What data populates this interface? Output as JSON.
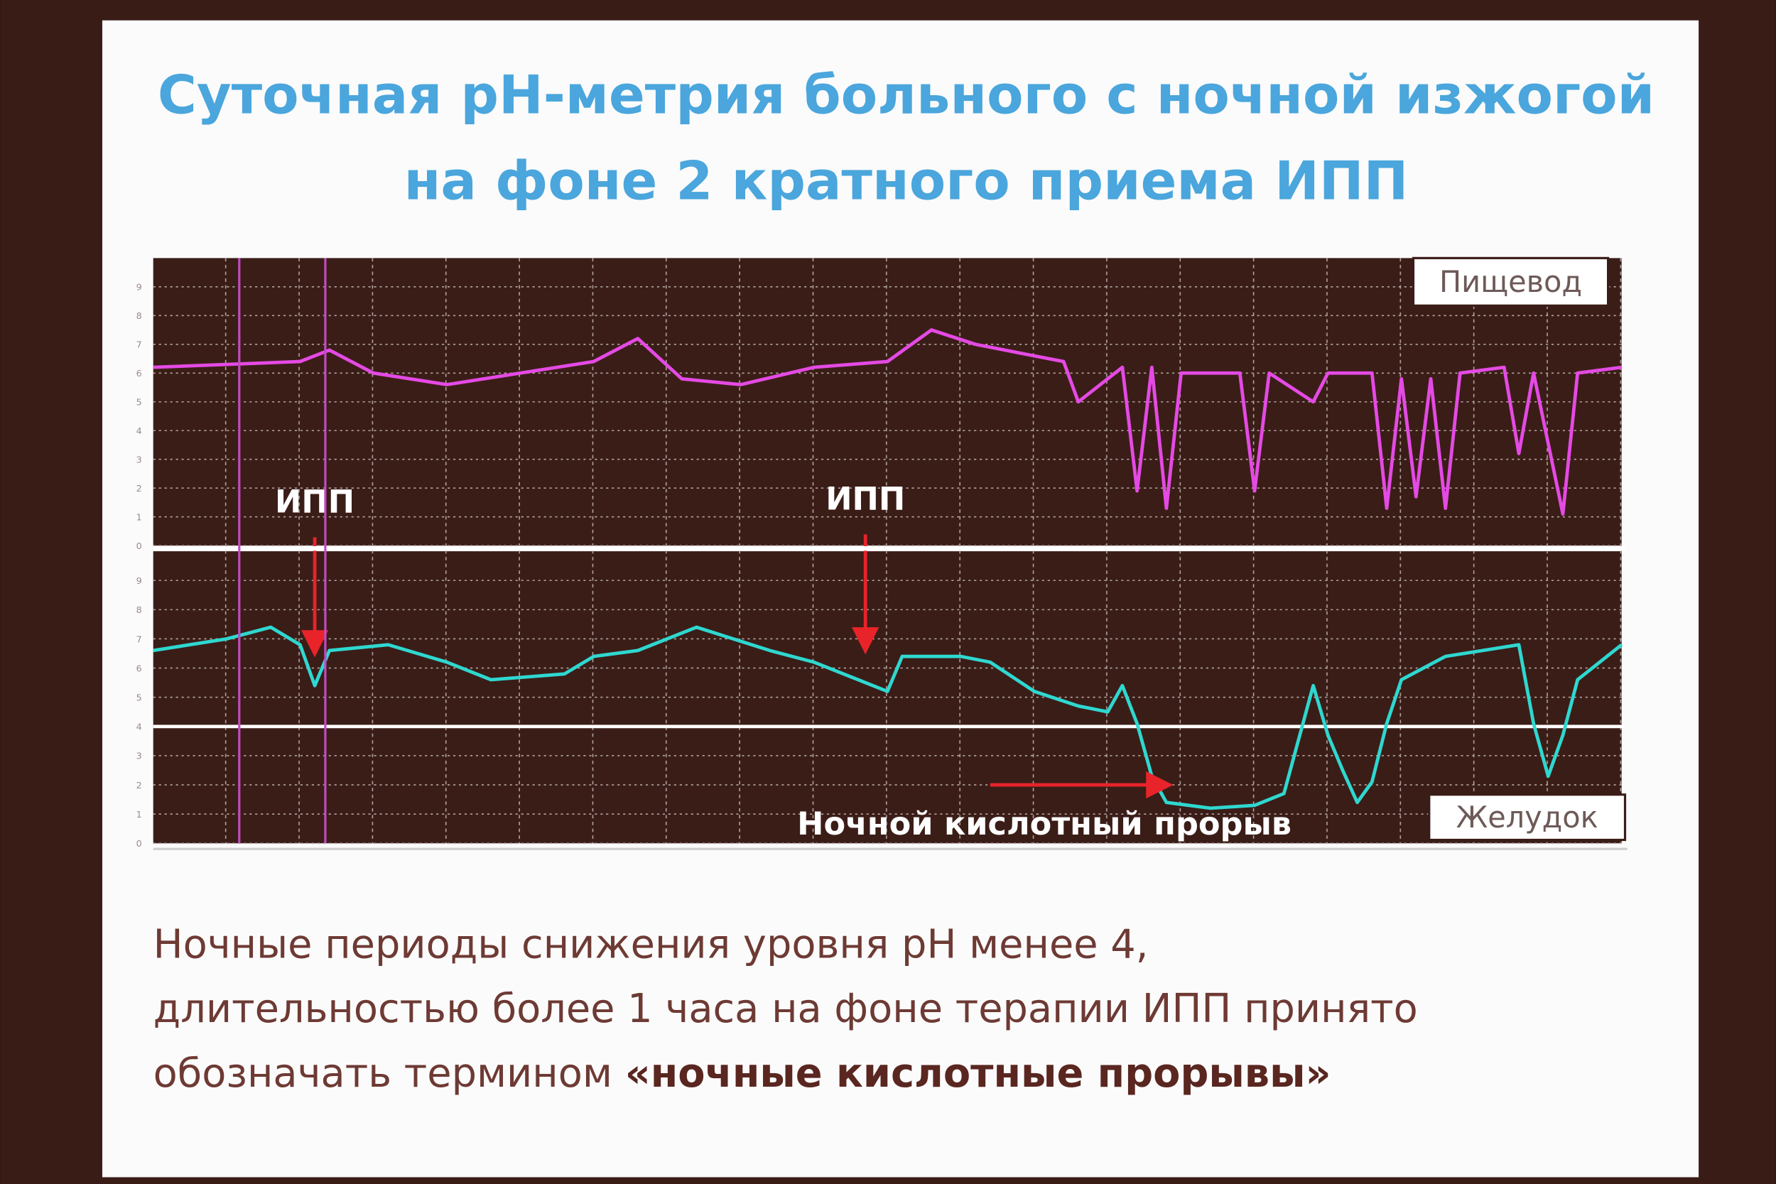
{
  "title_lines": [
    "Суточная рН-метрия больного с ночной изжогой",
    "на фоне 2 кратного приема ИПП"
  ],
  "chart_data": [
    {
      "type": "line",
      "ylim": [
        0,
        10
      ],
      "yticks": [
        0,
        1,
        2,
        3,
        4,
        5,
        6,
        7,
        8,
        9
      ],
      "xlim": [
        0,
        100
      ],
      "grid": true,
      "series": [
        {
          "name": "Пищевод",
          "color": "#e44ae4",
          "x": [
            0,
            10,
            12,
            15,
            20,
            30,
            33,
            36,
            40,
            45,
            50,
            53,
            56,
            60,
            62,
            63,
            66,
            67,
            68,
            69,
            70,
            74,
            75,
            76,
            79,
            80,
            83,
            84,
            85,
            86,
            87,
            88,
            89,
            92,
            93,
            94,
            96,
            97,
            100
          ],
          "values": [
            6.2,
            6.4,
            6.8,
            6.0,
            5.6,
            6.4,
            7.2,
            5.8,
            5.6,
            6.2,
            6.4,
            7.5,
            7.0,
            6.6,
            6.4,
            5.0,
            6.2,
            1.9,
            6.2,
            1.3,
            6.0,
            6.0,
            1.9,
            6.0,
            5.0,
            6.0,
            6.0,
            1.3,
            5.8,
            1.7,
            5.8,
            1.3,
            6.0,
            6.2,
            3.2,
            6.0,
            1.1,
            6.0,
            6.2
          ]
        }
      ]
    },
    {
      "type": "line",
      "ylim": [
        0,
        10
      ],
      "yticks": [
        0,
        1,
        2,
        3,
        4,
        5,
        6,
        7,
        8,
        9
      ],
      "xlim": [
        0,
        100
      ],
      "grid": true,
      "threshold": 4,
      "series": [
        {
          "name": "Желудок",
          "color": "#2ed8d0",
          "x": [
            0,
            5,
            8,
            10,
            11,
            12,
            16,
            20,
            23,
            28,
            30,
            33,
            37,
            42,
            45,
            48,
            50,
            51,
            55,
            57,
            60,
            63,
            65,
            66,
            67,
            68,
            69,
            72,
            75,
            77,
            79,
            80,
            81,
            82,
            83,
            84,
            85,
            88,
            93,
            94,
            95,
            96,
            97,
            100
          ],
          "values": [
            6.6,
            7.0,
            7.4,
            6.8,
            5.4,
            6.6,
            6.8,
            6.2,
            5.6,
            5.8,
            6.4,
            6.6,
            7.4,
            6.6,
            6.2,
            5.6,
            5.2,
            6.4,
            6.4,
            6.2,
            5.2,
            4.7,
            4.5,
            5.4,
            4.1,
            2.3,
            1.4,
            1.2,
            1.3,
            1.7,
            5.4,
            3.7,
            2.5,
            1.4,
            2.1,
            4.1,
            5.6,
            6.4,
            6.8,
            4.1,
            2.3,
            3.7,
            5.6,
            6.8
          ]
        }
      ],
      "annotations": [
        {
          "text": "ИПП",
          "x": 11,
          "y": 6.6
        },
        {
          "text": "ИПП",
          "x": 48.5,
          "y": 6.7
        },
        {
          "text": "Ночной кислотный прорыв",
          "x": [
            57,
            69
          ],
          "y": 2
        }
      ]
    }
  ],
  "body": {
    "lines": [
      "Ночные периоды снижения уровня рН менее 4,",
      "длительностью более 1 часа на фоне терапии ИПП принято",
      "обозначать термином "
    ],
    "bold": "«ночные кислотные прорывы»"
  }
}
